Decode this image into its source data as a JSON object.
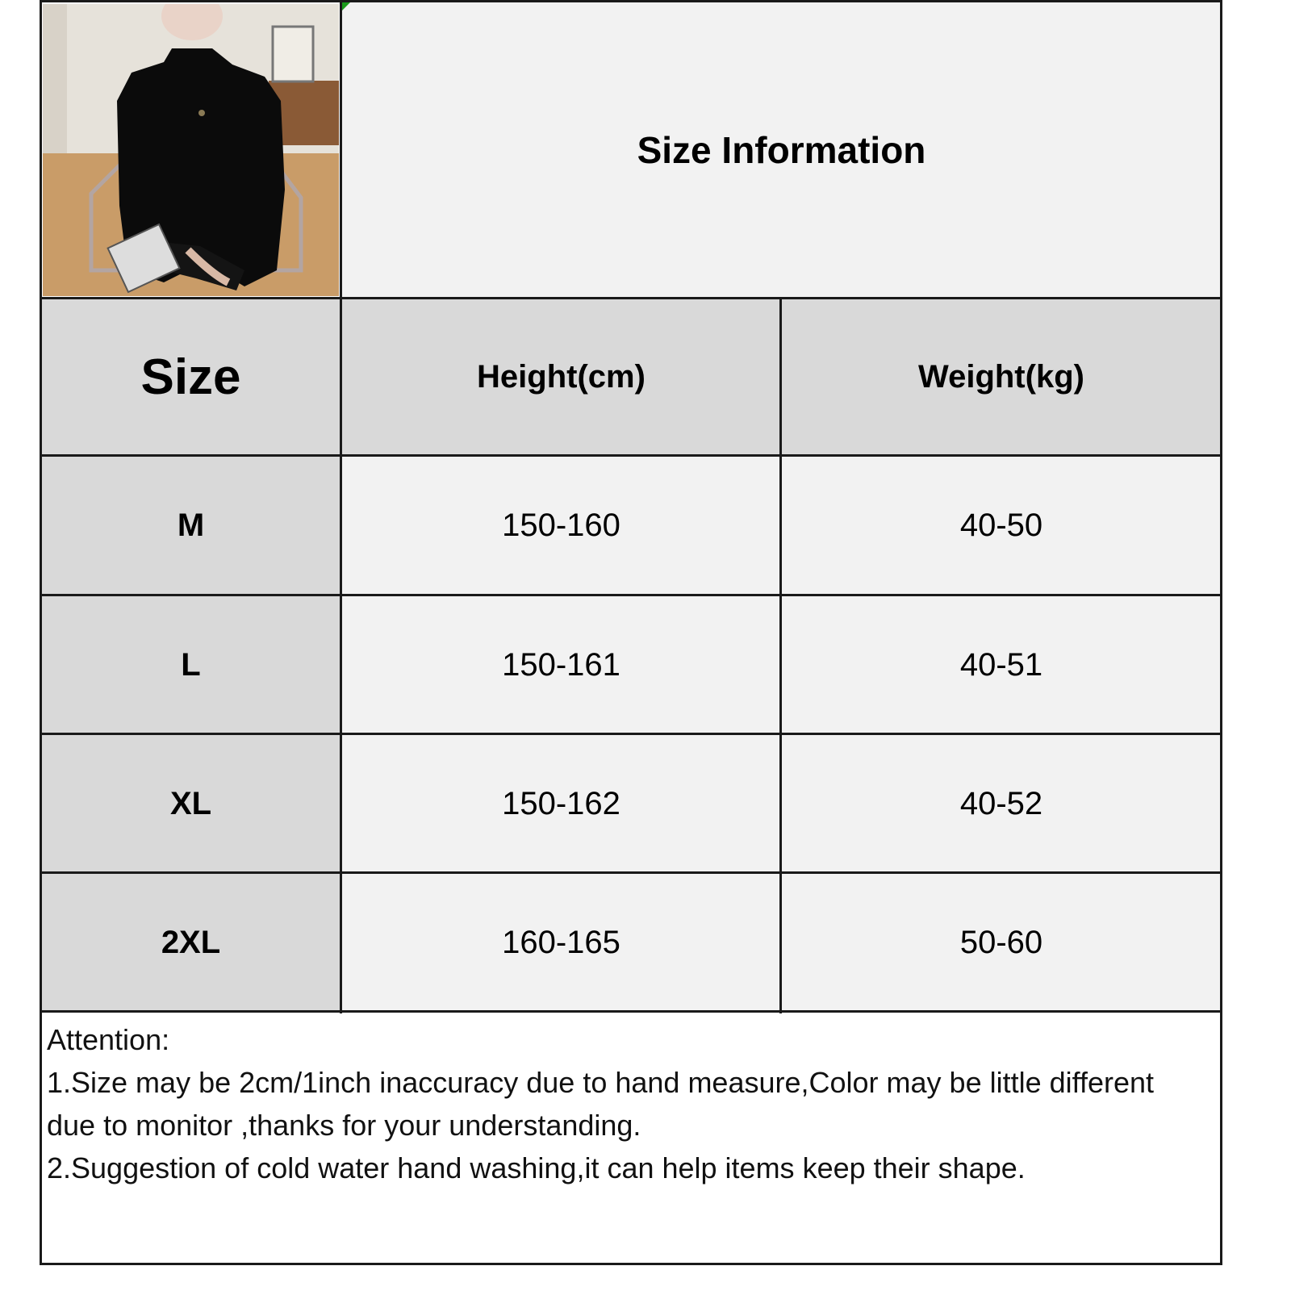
{
  "title": "Size Information",
  "header": {
    "size": "Size",
    "height": "Height(cm)",
    "weight": "Weight(kg)"
  },
  "rows": [
    {
      "size": "M",
      "height": "150-160",
      "weight": "40-50"
    },
    {
      "size": "L",
      "height": "150-161",
      "weight": "40-51"
    },
    {
      "size": "XL",
      "height": "150-162",
      "weight": "40-52"
    },
    {
      "size": "2XL",
      "height": "160-165",
      "weight": "50-60"
    }
  ],
  "attention": {
    "heading": "Attention:",
    "line1": "1.Size may be 2cm/1inch inaccuracy due to hand measure,Color may be little different due to monitor ,thanks for your understanding.",
    "line2": "2.Suggestion of cold water hand washing,it can help items keep their shape."
  },
  "colors": {
    "header_bg": "#d9d9d9",
    "cell_bg": "#f2f2f2",
    "border": "#1a1a1a"
  }
}
